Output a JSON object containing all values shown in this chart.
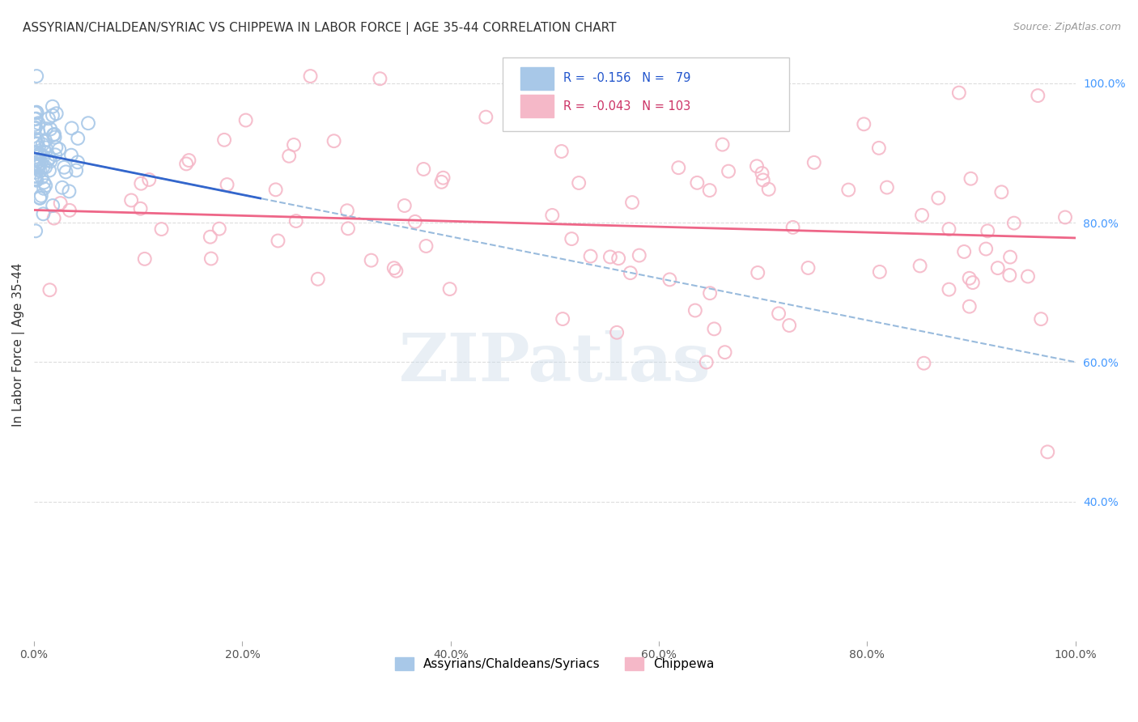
{
  "title": "ASSYRIAN/CHALDEAN/SYRIAC VS CHIPPEWA IN LABOR FORCE | AGE 35-44 CORRELATION CHART",
  "source": "Source: ZipAtlas.com",
  "ylabel": "In Labor Force | Age 35-44",
  "xmin": 0.0,
  "xmax": 1.0,
  "ymin": 0.2,
  "ymax": 1.05,
  "xtick_labels": [
    "0.0%",
    "20.0%",
    "40.0%",
    "60.0%",
    "80.0%",
    "100.0%"
  ],
  "xtick_vals": [
    0.0,
    0.2,
    0.4,
    0.6,
    0.8,
    1.0
  ],
  "ytick_labels_right": [
    "100.0%",
    "80.0%",
    "60.0%",
    "40.0%"
  ],
  "ytick_vals_right": [
    1.0,
    0.8,
    0.6,
    0.4
  ],
  "legend_labels_bottom": [
    "Assyrians/Chaldeans/Syriacs",
    "Chippewa"
  ],
  "blue_R": -0.156,
  "blue_N": 79,
  "blue_intercept": 0.9,
  "blue_slope": -0.3,
  "pink_R": -0.043,
  "pink_N": 103,
  "pink_intercept": 0.818,
  "pink_slope": -0.04,
  "watermark": "ZIPatlas",
  "background_color": "#ffffff",
  "grid_color": "#dddddd",
  "blue_scatter_color": "#a8c8e8",
  "blue_line_color": "#3366cc",
  "blue_dashed_color": "#99bbdd",
  "pink_scatter_color": "#f5b8c8",
  "pink_line_color": "#ee6688",
  "title_fontsize": 11,
  "axis_label_fontsize": 11,
  "right_tick_color": "#4499ff",
  "source_color": "#999999",
  "watermark_color": "#c8d8e8",
  "legend_blue_text_color": "#2255cc",
  "legend_pink_text_color": "#cc3366"
}
